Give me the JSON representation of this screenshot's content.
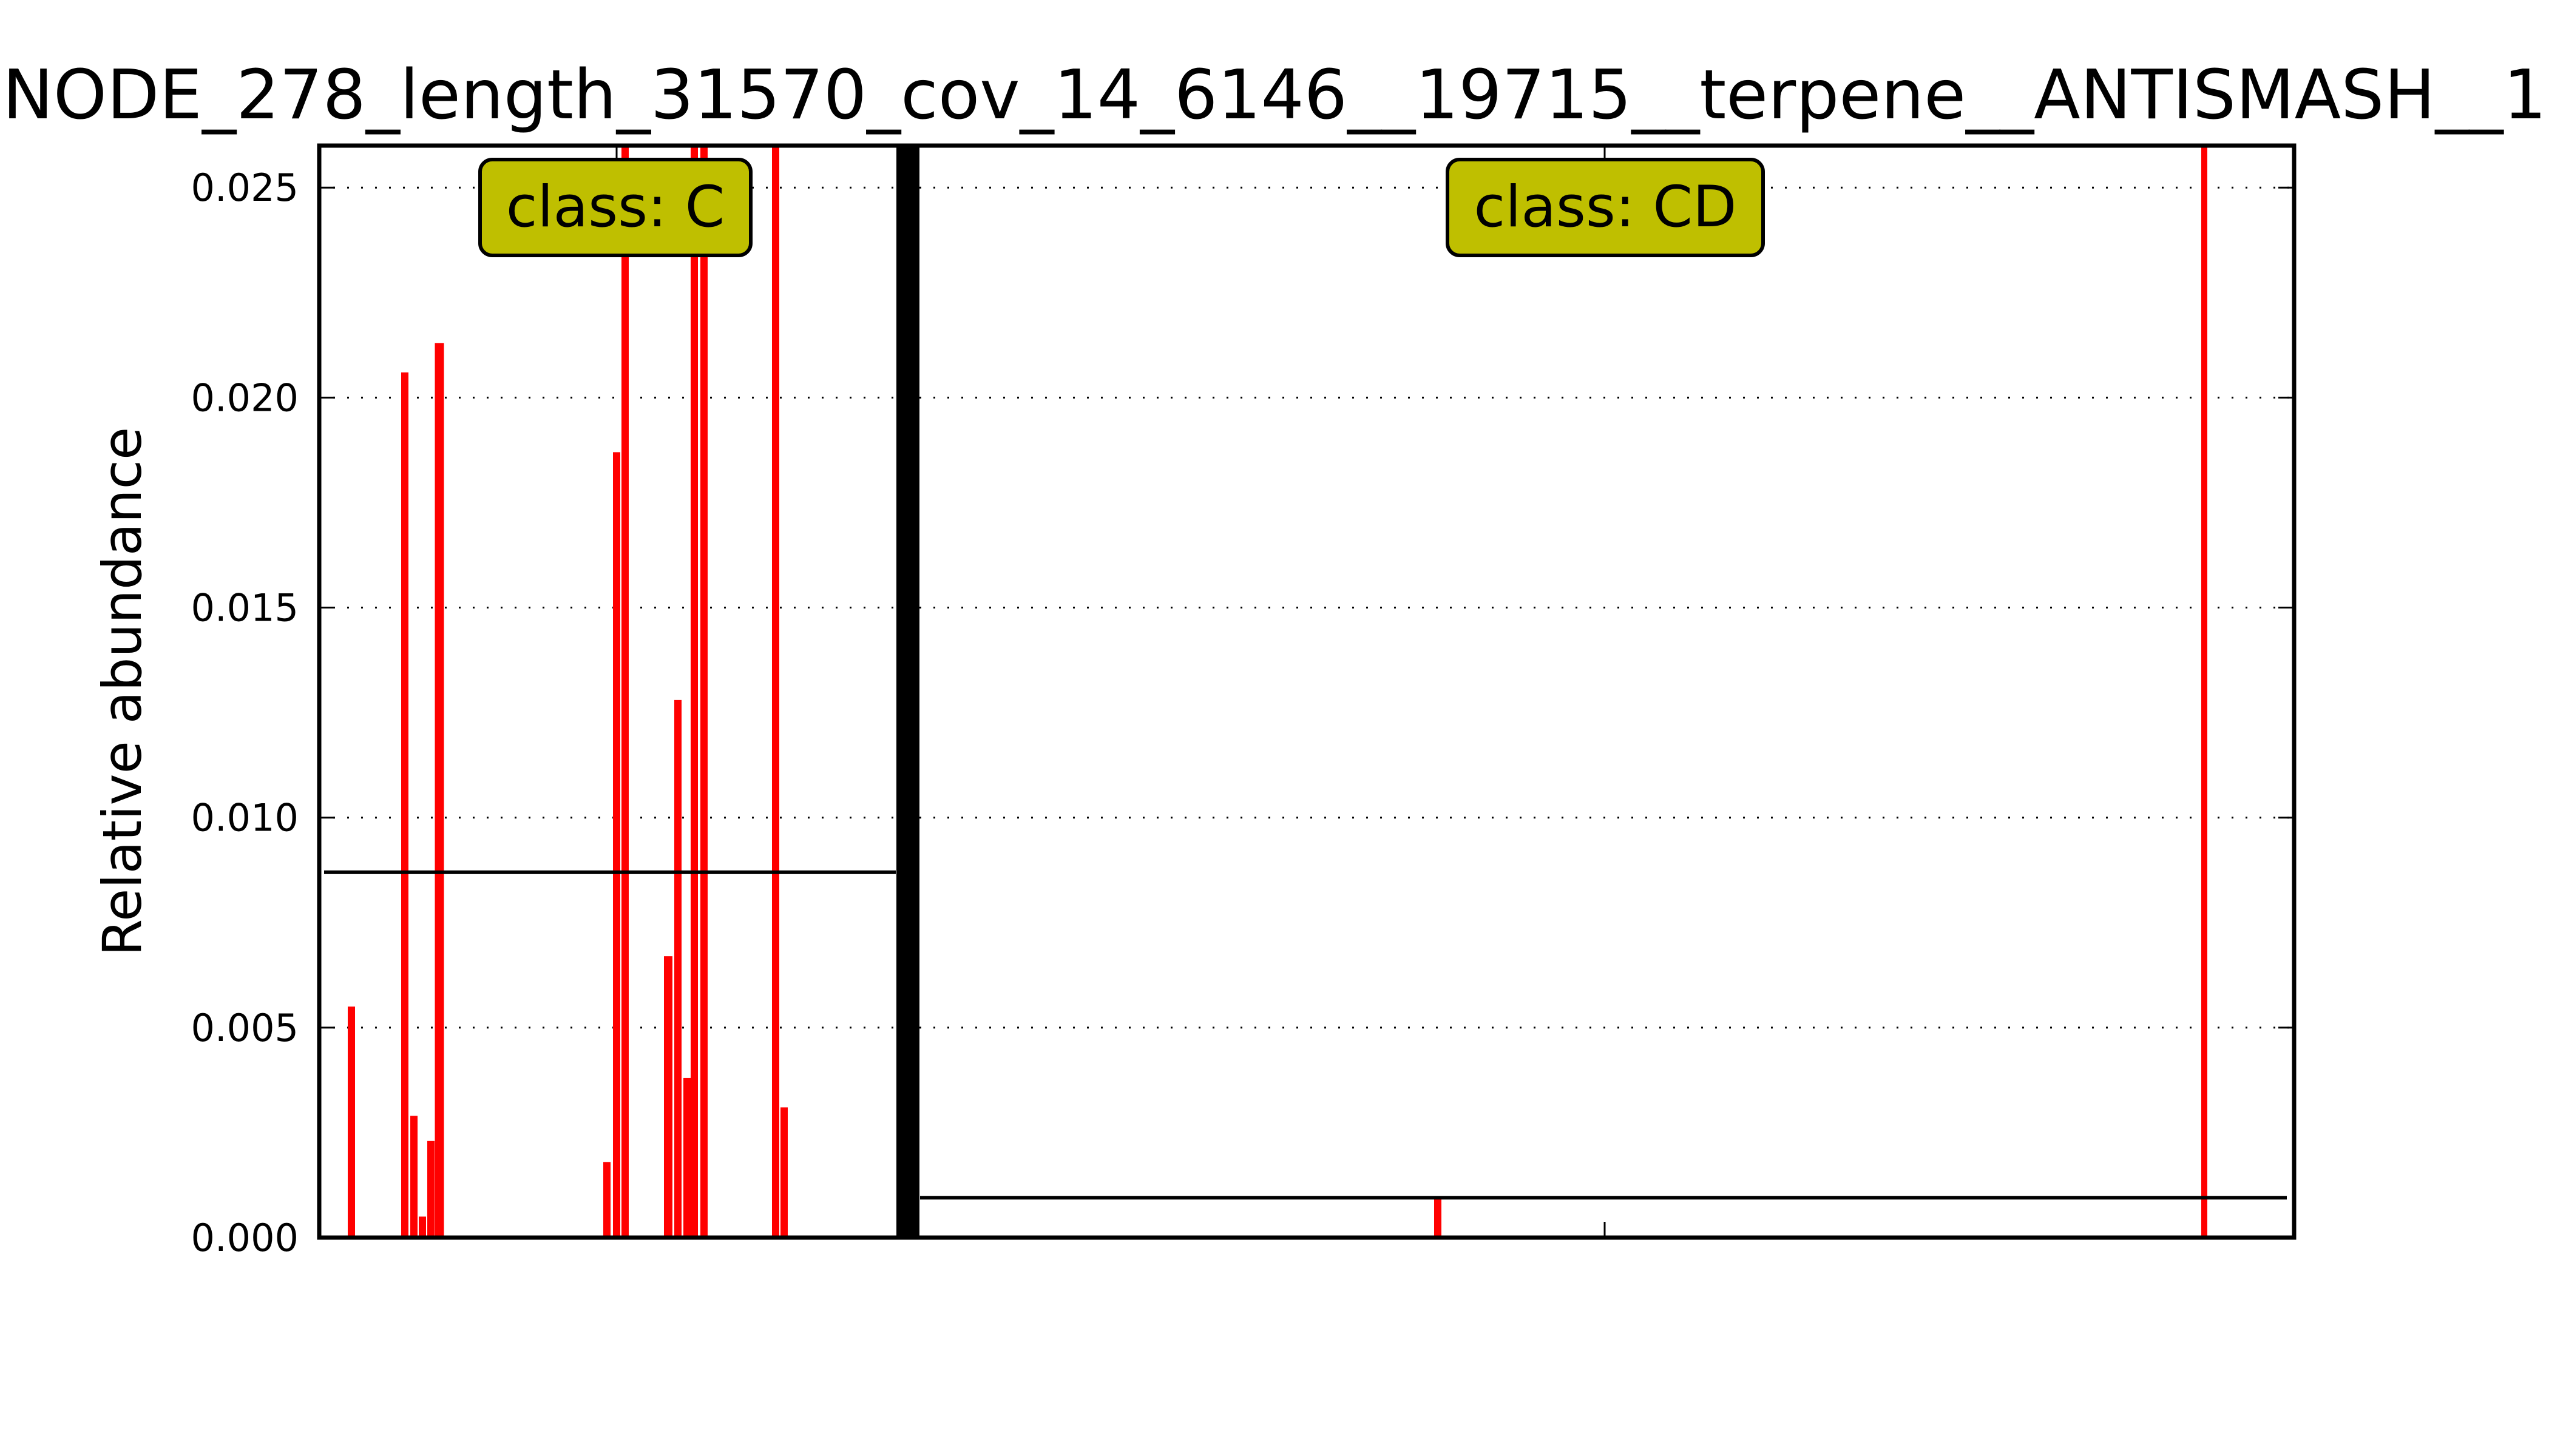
{
  "chart_data": {
    "type": "bar",
    "title": "NODE_278_length_31570_cov_14_6146__19715__terpene__ANTISMASH__1",
    "xlabel": "",
    "ylabel": "Relative abundance",
    "ylim": [
      0,
      0.026
    ],
    "yticks": [
      "0.000",
      "0.005",
      "0.010",
      "0.015",
      "0.020",
      "0.025"
    ],
    "grid": "horizontal dotted",
    "bar_color": "#ff0000",
    "groups": [
      {
        "annotation": "class: C",
        "annotation_color": "#bfbf00",
        "mean": 0.0087,
        "values": [
          0.0055,
          0.0206,
          0.0029,
          0.0005,
          0.0023,
          0.0213,
          0.0018,
          0.0187,
          0.026,
          0.0067,
          0.0128,
          0.0038,
          0.026,
          0.026,
          0.026,
          0.0031
        ]
      },
      {
        "annotation": "class: CD",
        "annotation_color": "#bfbf00",
        "mean": 0.00095,
        "values": [
          0.00095,
          0.026
        ]
      }
    ]
  }
}
